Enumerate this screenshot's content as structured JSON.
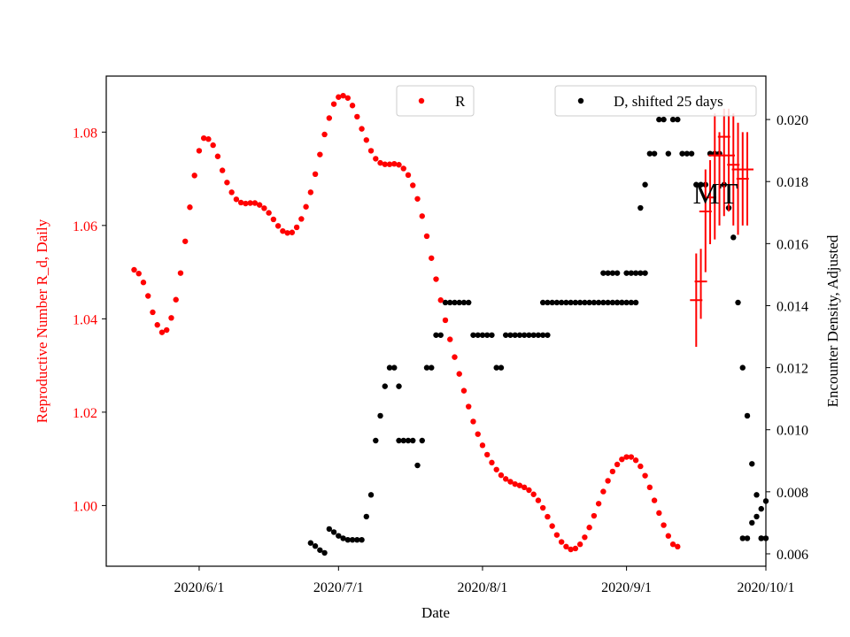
{
  "chart_data": {
    "type": "scatter",
    "title": "",
    "xlabel": "Date",
    "ylabel_left": "Reproductive Number R_d, Daily",
    "ylabel_right": "Encounter Density, Adjusted",
    "annotation": "MT",
    "x_ticks": [
      "2020/6/1",
      "2020/7/1",
      "2020/8/1",
      "2020/9/1",
      "2020/10/1"
    ],
    "x_tick_dates": [
      "2020-06-01",
      "2020-07-01",
      "2020-08-01",
      "2020-09-01",
      "2020-10-01"
    ],
    "xlim": [
      "2020-05-12",
      "2020-10-01"
    ],
    "y_left_ticks": [
      "1.00",
      "1.02",
      "1.04",
      "1.06",
      "1.08"
    ],
    "y_left_values": [
      1.0,
      1.02,
      1.04,
      1.06,
      1.08
    ],
    "y_left_lim": [
      0.987,
      1.092
    ],
    "y_right_ticks": [
      "0.006",
      "0.008",
      "0.010",
      "0.012",
      "0.014",
      "0.016",
      "0.018",
      "0.020"
    ],
    "y_right_values": [
      0.006,
      0.008,
      0.01,
      0.012,
      0.014,
      0.016,
      0.018,
      0.02
    ],
    "y_right_lim": [
      0.0056,
      0.0214
    ],
    "grid": false,
    "colors": {
      "R": "#ff0000",
      "D": "#000000"
    },
    "series": [
      {
        "name": "R",
        "axis": "left",
        "color": "#ff0000",
        "points": [
          [
            "2020-05-18",
            1.0505
          ],
          [
            "2020-05-19",
            1.0497
          ],
          [
            "2020-05-20",
            1.0478
          ],
          [
            "2020-05-21",
            1.0449
          ],
          [
            "2020-05-22",
            1.0414
          ],
          [
            "2020-05-23",
            1.0387
          ],
          [
            "2020-05-24",
            1.0371
          ],
          [
            "2020-05-25",
            1.0376
          ],
          [
            "2020-05-26",
            1.0402
          ],
          [
            "2020-05-27",
            1.0441
          ],
          [
            "2020-05-28",
            1.0498
          ],
          [
            "2020-05-29",
            1.0566
          ],
          [
            "2020-05-30",
            1.0639
          ],
          [
            "2020-05-31",
            1.0707
          ],
          [
            "2020-06-01",
            1.076
          ],
          [
            "2020-06-02",
            1.0787
          ],
          [
            "2020-06-03",
            1.0785
          ],
          [
            "2020-06-04",
            1.0772
          ],
          [
            "2020-06-05",
            1.0748
          ],
          [
            "2020-06-06",
            1.0718
          ],
          [
            "2020-06-07",
            1.0692
          ],
          [
            "2020-06-08",
            1.0671
          ],
          [
            "2020-06-09",
            1.0656
          ],
          [
            "2020-06-10",
            1.0649
          ],
          [
            "2020-06-11",
            1.0647
          ],
          [
            "2020-06-12",
            1.0648
          ],
          [
            "2020-06-13",
            1.0648
          ],
          [
            "2020-06-14",
            1.0644
          ],
          [
            "2020-06-15",
            1.0637
          ],
          [
            "2020-06-16",
            1.0627
          ],
          [
            "2020-06-17",
            1.0613
          ],
          [
            "2020-06-18",
            1.0599
          ],
          [
            "2020-06-19",
            1.0588
          ],
          [
            "2020-06-20",
            1.0584
          ],
          [
            "2020-06-21",
            1.0585
          ],
          [
            "2020-06-22",
            1.0596
          ],
          [
            "2020-06-23",
            1.0614
          ],
          [
            "2020-06-24",
            1.064
          ],
          [
            "2020-06-25",
            1.0671
          ],
          [
            "2020-06-26",
            1.071
          ],
          [
            "2020-06-27",
            1.0752
          ],
          [
            "2020-06-28",
            1.0795
          ],
          [
            "2020-06-29",
            1.083
          ],
          [
            "2020-06-30",
            1.086
          ],
          [
            "2020-07-01",
            1.0875
          ],
          [
            "2020-07-02",
            1.0878
          ],
          [
            "2020-07-03",
            1.0873
          ],
          [
            "2020-07-04",
            1.0857
          ],
          [
            "2020-07-05",
            1.0833
          ],
          [
            "2020-07-06",
            1.0807
          ],
          [
            "2020-07-07",
            1.0783
          ],
          [
            "2020-07-08",
            1.076
          ],
          [
            "2020-07-09",
            1.0743
          ],
          [
            "2020-07-10",
            1.0734
          ],
          [
            "2020-07-11",
            1.0731
          ],
          [
            "2020-07-12",
            1.0731
          ],
          [
            "2020-07-13",
            1.0732
          ],
          [
            "2020-07-14",
            1.073
          ],
          [
            "2020-07-15",
            1.0722
          ],
          [
            "2020-07-16",
            1.0708
          ],
          [
            "2020-07-17",
            1.0686
          ],
          [
            "2020-07-18",
            1.0657
          ],
          [
            "2020-07-19",
            1.062
          ],
          [
            "2020-07-20",
            1.0577
          ],
          [
            "2020-07-21",
            1.053
          ],
          [
            "2020-07-22",
            1.0485
          ],
          [
            "2020-07-23",
            1.044
          ],
          [
            "2020-07-24",
            1.0397
          ],
          [
            "2020-07-25",
            1.0356
          ],
          [
            "2020-07-26",
            1.0318
          ],
          [
            "2020-07-27",
            1.0282
          ],
          [
            "2020-07-28",
            1.0246
          ],
          [
            "2020-07-29",
            1.0212
          ],
          [
            "2020-07-30",
            1.018
          ],
          [
            "2020-07-31",
            1.0153
          ],
          [
            "2020-08-01",
            1.0129
          ],
          [
            "2020-08-02",
            1.0109
          ],
          [
            "2020-08-03",
            1.0092
          ],
          [
            "2020-08-04",
            1.0077
          ],
          [
            "2020-08-05",
            1.0065
          ],
          [
            "2020-08-06",
            1.0057
          ],
          [
            "2020-08-07",
            1.0051
          ],
          [
            "2020-08-08",
            1.0046
          ],
          [
            "2020-08-09",
            1.0043
          ],
          [
            "2020-08-10",
            1.0039
          ],
          [
            "2020-08-11",
            1.0033
          ],
          [
            "2020-08-12",
            1.0024
          ],
          [
            "2020-08-13",
            1.0011
          ],
          [
            "2020-08-14",
            0.9995
          ],
          [
            "2020-08-15",
            0.9976
          ],
          [
            "2020-08-16",
            0.9956
          ],
          [
            "2020-08-17",
            0.9937
          ],
          [
            "2020-08-18",
            0.9922
          ],
          [
            "2020-08-19",
            0.9912
          ],
          [
            "2020-08-20",
            0.9906
          ],
          [
            "2020-08-21",
            0.9908
          ],
          [
            "2020-08-22",
            0.9917
          ],
          [
            "2020-08-23",
            0.9932
          ],
          [
            "2020-08-24",
            0.9953
          ],
          [
            "2020-08-25",
            0.9978
          ],
          [
            "2020-08-26",
            1.0004
          ],
          [
            "2020-08-27",
            1.003
          ],
          [
            "2020-08-28",
            1.0053
          ],
          [
            "2020-08-29",
            1.0073
          ],
          [
            "2020-08-30",
            1.0088
          ],
          [
            "2020-08-31",
            1.0099
          ],
          [
            "2020-09-01",
            1.0104
          ],
          [
            "2020-09-02",
            1.0104
          ],
          [
            "2020-09-03",
            1.0097
          ],
          [
            "2020-09-04",
            1.0084
          ],
          [
            "2020-09-05",
            1.0064
          ],
          [
            "2020-09-06",
            1.0039
          ],
          [
            "2020-09-07",
            1.0011
          ],
          [
            "2020-09-08",
            0.9984
          ],
          [
            "2020-09-09",
            0.9958
          ],
          [
            "2020-09-10",
            0.9935
          ],
          [
            "2020-09-11",
            0.9917
          ],
          [
            "2020-09-12",
            0.9912
          ]
        ]
      },
      {
        "name": "D, shifted 25 days",
        "axis": "right",
        "color": "#000000",
        "points": [
          [
            "2020-06-25",
            0.00635
          ],
          [
            "2020-06-26",
            0.00625
          ],
          [
            "2020-06-27",
            0.00612
          ],
          [
            "2020-06-28",
            0.00603
          ],
          [
            "2020-06-29",
            0.0068
          ],
          [
            "2020-06-30",
            0.0067
          ],
          [
            "2020-07-01",
            0.00658
          ],
          [
            "2020-07-02",
            0.0065
          ],
          [
            "2020-07-03",
            0.00645
          ],
          [
            "2020-07-04",
            0.00645
          ],
          [
            "2020-07-05",
            0.00645
          ],
          [
            "2020-07-06",
            0.00645
          ],
          [
            "2020-07-07",
            0.0072
          ],
          [
            "2020-07-08",
            0.0079
          ],
          [
            "2020-07-09",
            0.00965
          ],
          [
            "2020-07-10",
            0.01045
          ],
          [
            "2020-07-11",
            0.0114
          ],
          [
            "2020-07-12",
            0.012
          ],
          [
            "2020-07-13",
            0.012
          ],
          [
            "2020-07-14",
            0.0114
          ],
          [
            "2020-07-14",
            0.00965
          ],
          [
            "2020-07-15",
            0.00965
          ],
          [
            "2020-07-16",
            0.00965
          ],
          [
            "2020-07-17",
            0.00965
          ],
          [
            "2020-07-18",
            0.00885
          ],
          [
            "2020-07-19",
            0.00965
          ],
          [
            "2020-07-20",
            0.012
          ],
          [
            "2020-07-21",
            0.012
          ],
          [
            "2020-07-22",
            0.01305
          ],
          [
            "2020-07-23",
            0.01305
          ],
          [
            "2020-07-24",
            0.0141
          ],
          [
            "2020-07-25",
            0.0141
          ],
          [
            "2020-07-26",
            0.0141
          ],
          [
            "2020-07-27",
            0.0141
          ],
          [
            "2020-07-28",
            0.0141
          ],
          [
            "2020-07-29",
            0.0141
          ],
          [
            "2020-07-30",
            0.01305
          ],
          [
            "2020-07-31",
            0.01305
          ],
          [
            "2020-08-01",
            0.01305
          ],
          [
            "2020-08-02",
            0.01305
          ],
          [
            "2020-08-03",
            0.01305
          ],
          [
            "2020-08-04",
            0.012
          ],
          [
            "2020-08-05",
            0.012
          ],
          [
            "2020-08-06",
            0.01305
          ],
          [
            "2020-08-07",
            0.01305
          ],
          [
            "2020-08-08",
            0.01305
          ],
          [
            "2020-08-09",
            0.01305
          ],
          [
            "2020-08-10",
            0.01305
          ],
          [
            "2020-08-11",
            0.01305
          ],
          [
            "2020-08-12",
            0.01305
          ],
          [
            "2020-08-13",
            0.01305
          ],
          [
            "2020-08-14",
            0.01305
          ],
          [
            "2020-08-15",
            0.01305
          ],
          [
            "2020-08-14",
            0.0141
          ],
          [
            "2020-08-15",
            0.0141
          ],
          [
            "2020-08-16",
            0.0141
          ],
          [
            "2020-08-17",
            0.0141
          ],
          [
            "2020-08-18",
            0.0141
          ],
          [
            "2020-08-19",
            0.0141
          ],
          [
            "2020-08-20",
            0.0141
          ],
          [
            "2020-08-21",
            0.0141
          ],
          [
            "2020-08-22",
            0.0141
          ],
          [
            "2020-08-23",
            0.0141
          ],
          [
            "2020-08-24",
            0.0141
          ],
          [
            "2020-08-25",
            0.0141
          ],
          [
            "2020-08-26",
            0.0141
          ],
          [
            "2020-08-27",
            0.0141
          ],
          [
            "2020-08-28",
            0.0141
          ],
          [
            "2020-08-29",
            0.0141
          ],
          [
            "2020-08-30",
            0.0141
          ],
          [
            "2020-08-31",
            0.0141
          ],
          [
            "2020-08-27",
            0.01505
          ],
          [
            "2020-08-28",
            0.01505
          ],
          [
            "2020-08-29",
            0.01505
          ],
          [
            "2020-08-30",
            0.01505
          ],
          [
            "2020-08-31",
            0.0141
          ],
          [
            "2020-09-01",
            0.0141
          ],
          [
            "2020-09-01",
            0.01505
          ],
          [
            "2020-09-02",
            0.01505
          ],
          [
            "2020-09-03",
            0.01505
          ],
          [
            "2020-09-04",
            0.01505
          ],
          [
            "2020-09-05",
            0.01505
          ],
          [
            "2020-08-30",
            0.0141
          ],
          [
            "2020-09-02",
            0.0141
          ],
          [
            "2020-09-03",
            0.0141
          ],
          [
            "2020-09-04",
            0.01715
          ],
          [
            "2020-09-05",
            0.0179
          ],
          [
            "2020-09-06",
            0.0189
          ],
          [
            "2020-09-07",
            0.0189
          ],
          [
            "2020-09-08",
            0.02
          ],
          [
            "2020-09-09",
            0.02
          ],
          [
            "2020-09-10",
            0.0189
          ],
          [
            "2020-09-11",
            0.02
          ],
          [
            "2020-09-12",
            0.02
          ],
          [
            "2020-09-13",
            0.0189
          ],
          [
            "2020-09-14",
            0.0189
          ],
          [
            "2020-09-15",
            0.0189
          ],
          [
            "2020-09-16",
            0.0179
          ],
          [
            "2020-09-17",
            0.0179
          ],
          [
            "2020-09-18",
            0.0179
          ],
          [
            "2020-09-19",
            0.0189
          ],
          [
            "2020-09-20",
            0.0189
          ],
          [
            "2020-09-21",
            0.0189
          ],
          [
            "2020-09-22",
            0.0179
          ],
          [
            "2020-09-23",
            0.01715
          ],
          [
            "2020-09-24",
            0.0162
          ],
          [
            "2020-09-25",
            0.0141
          ],
          [
            "2020-09-26",
            0.012
          ],
          [
            "2020-09-27",
            0.01045
          ],
          [
            "2020-09-28",
            0.0089
          ],
          [
            "2020-09-29",
            0.0079
          ],
          [
            "2020-09-30",
            0.0065
          ],
          [
            "2020-09-30",
            0.0065
          ],
          [
            "2020-10-01",
            0.0065
          ],
          [
            "2020-09-26",
            0.0065
          ],
          [
            "2020-09-27",
            0.0065
          ],
          [
            "2020-09-28",
            0.007
          ],
          [
            "2020-09-29",
            0.0072
          ],
          [
            "2020-09-30",
            0.00745
          ],
          [
            "2020-10-01",
            0.0077
          ]
        ]
      },
      {
        "name": "",
        "type": "errorbar",
        "axis": "left",
        "color": "#ff0000",
        "points": [
          [
            "2020-09-16",
            1.044,
            1.034,
            1.054
          ],
          [
            "2020-09-17",
            1.048,
            1.04,
            1.055
          ],
          [
            "2020-09-18",
            1.063,
            1.05,
            1.072
          ],
          [
            "2020-09-19",
            1.066,
            1.056,
            1.074
          ],
          [
            "2020-09-20",
            1.075,
            1.057,
            1.084
          ],
          [
            "2020-09-21",
            1.075,
            1.06,
            1.08
          ],
          [
            "2020-09-22",
            1.079,
            1.062,
            1.085
          ],
          [
            "2020-09-23",
            1.075,
            1.063,
            1.085
          ],
          [
            "2020-09-24",
            1.073,
            1.06,
            1.084
          ],
          [
            "2020-09-25",
            1.072,
            1.058,
            1.082
          ],
          [
            "2020-09-26",
            1.07,
            1.06,
            1.08
          ],
          [
            "2020-09-27",
            1.072,
            1.06,
            1.08
          ]
        ]
      }
    ],
    "legend": [
      {
        "label": "R",
        "placement": "top-center",
        "color": "#ff0000"
      },
      {
        "label": "D, shifted 25 days",
        "placement": "top-right",
        "color": "#000000"
      }
    ]
  }
}
